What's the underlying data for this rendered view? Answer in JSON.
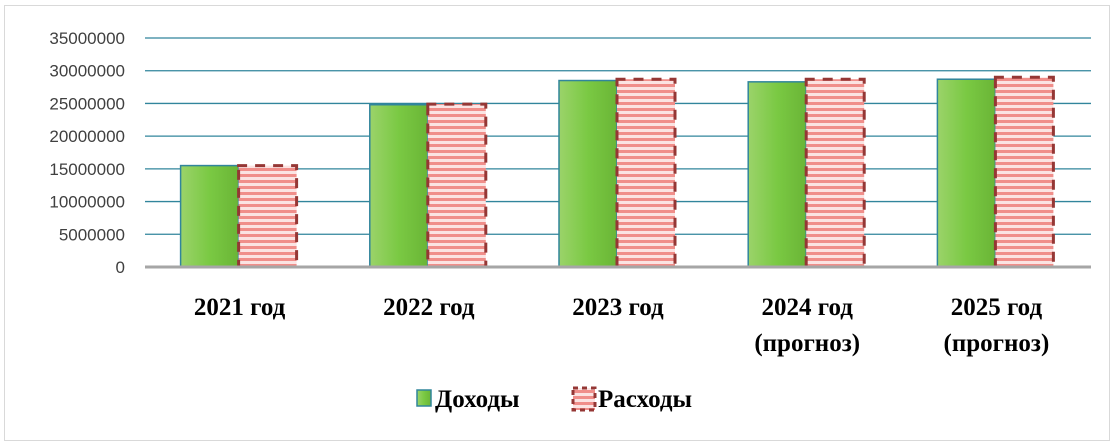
{
  "chart_data": {
    "type": "bar",
    "title": "",
    "xlabel": "",
    "ylabel": "",
    "categories": [
      [
        "2021 год"
      ],
      [
        "2022 год"
      ],
      [
        "2023 год"
      ],
      [
        "2024 год",
        "(прогноз)"
      ],
      [
        "2025 год",
        "(прогноз)"
      ]
    ],
    "series": [
      {
        "name": "Доходы",
        "values": [
          15500000,
          24800000,
          28500000,
          28300000,
          28700000
        ],
        "color": "#7ac943",
        "border": "#31859c"
      },
      {
        "name": "Расходы",
        "values": [
          15500000,
          24900000,
          28700000,
          28700000,
          29000000
        ],
        "color": "#f4a3a0",
        "border": "#953735"
      }
    ],
    "ylim": [
      0,
      35000000
    ],
    "yticks": [
      0,
      5000000,
      10000000,
      15000000,
      20000000,
      25000000,
      30000000,
      35000000
    ],
    "ytick_labels": [
      "0",
      "5000000",
      "10000000",
      "15000000",
      "20000000",
      "25000000",
      "30000000",
      "35000000"
    ],
    "grid": true,
    "gridline_color": "#31859c",
    "legend_position": "bottom"
  }
}
